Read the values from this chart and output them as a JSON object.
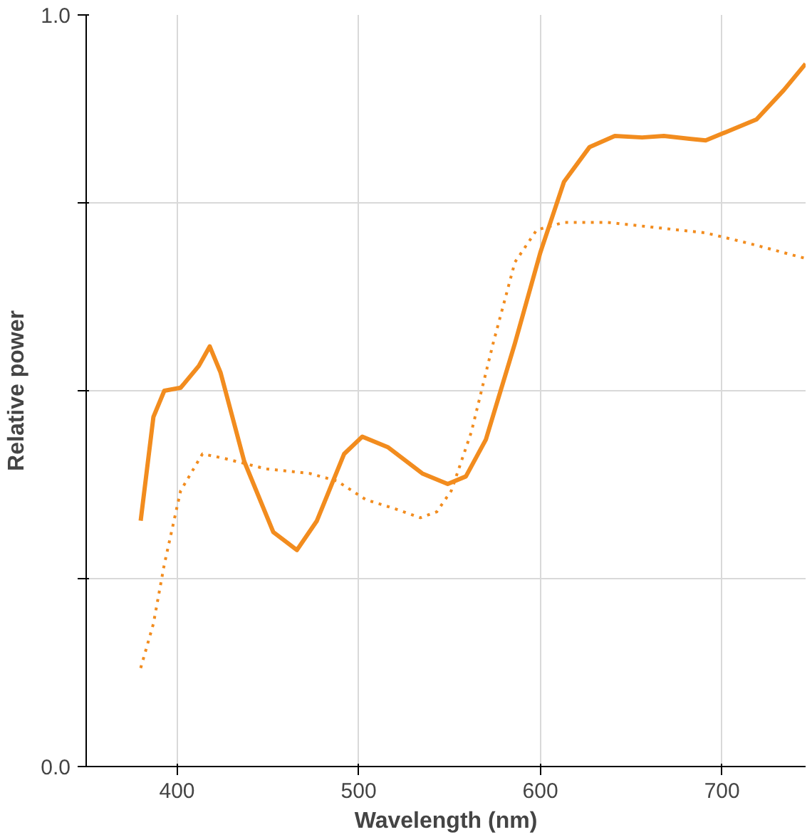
{
  "chart_data": {
    "type": "line",
    "xlabel": "Wavelength (nm)",
    "ylabel": "Relative power",
    "xlim": [
      350,
      746
    ],
    "ylim": [
      0,
      1
    ],
    "xticks": [
      400,
      500,
      600,
      700
    ],
    "yticks": [
      {
        "value": 0,
        "label": "0.0"
      },
      {
        "value": 0.25,
        "label": null
      },
      {
        "value": 0.5,
        "label": null
      },
      {
        "value": 0.75,
        "label": null
      },
      {
        "value": 1,
        "label": "1.0"
      }
    ],
    "grid": true,
    "marker": "none",
    "series": [
      {
        "color": "#f28c1e",
        "line_style": "solid",
        "x": [
          380,
          387,
          393,
          402,
          412,
          418,
          424,
          437,
          453,
          466,
          477,
          492,
          502,
          516,
          535,
          549,
          559,
          570,
          586,
          600,
          613,
          627,
          641,
          656,
          668,
          683,
          691,
          703,
          719,
          734,
          746
        ],
        "values": [
          0.327,
          0.465,
          0.5,
          0.504,
          0.533,
          0.559,
          0.524,
          0.406,
          0.312,
          0.288,
          0.327,
          0.416,
          0.439,
          0.425,
          0.39,
          0.376,
          0.386,
          0.435,
          0.563,
          0.684,
          0.778,
          0.824,
          0.839,
          0.837,
          0.839,
          0.835,
          0.833,
          0.845,
          0.861,
          0.9,
          0.935
        ]
      },
      {
        "color": "#f28c1e",
        "line_style": "dotted",
        "x": [
          380,
          387,
          393,
          402,
          414,
          426,
          449,
          473,
          488,
          504,
          520,
          534,
          543,
          551,
          562,
          574,
          586,
          598,
          613,
          637,
          668,
          691,
          715,
          746
        ],
        "values": [
          0.131,
          0.19,
          0.269,
          0.367,
          0.416,
          0.41,
          0.396,
          0.39,
          0.38,
          0.355,
          0.343,
          0.331,
          0.339,
          0.367,
          0.445,
          0.563,
          0.671,
          0.714,
          0.724,
          0.724,
          0.716,
          0.71,
          0.696,
          0.676
        ]
      }
    ]
  }
}
